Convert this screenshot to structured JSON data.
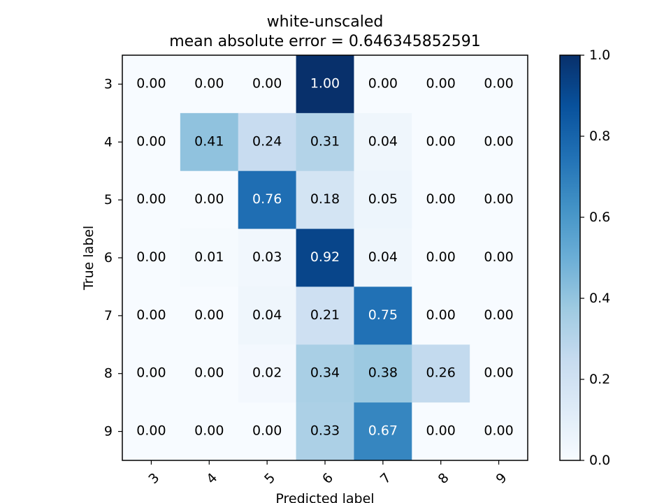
{
  "chart_data": {
    "type": "heatmap",
    "title": "white-unscaled",
    "subtitle": "mean absolute error = 0.646345852591",
    "xlabel": "Predicted label",
    "ylabel": "True label",
    "x_categories": [
      "3",
      "4",
      "5",
      "6",
      "7",
      "8",
      "9"
    ],
    "y_categories": [
      "3",
      "4",
      "5",
      "6",
      "7",
      "8",
      "9"
    ],
    "values": [
      [
        0.0,
        0.0,
        0.0,
        1.0,
        0.0,
        0.0,
        0.0
      ],
      [
        0.0,
        0.41,
        0.24,
        0.31,
        0.04,
        0.0,
        0.0
      ],
      [
        0.0,
        0.0,
        0.76,
        0.18,
        0.05,
        0.0,
        0.0
      ],
      [
        0.0,
        0.01,
        0.03,
        0.92,
        0.04,
        0.0,
        0.0
      ],
      [
        0.0,
        0.0,
        0.04,
        0.21,
        0.75,
        0.0,
        0.0
      ],
      [
        0.0,
        0.0,
        0.02,
        0.34,
        0.38,
        0.26,
        0.0
      ],
      [
        0.0,
        0.0,
        0.0,
        0.33,
        0.67,
        0.0,
        0.0
      ]
    ],
    "colormap": "Blues",
    "color_range": [
      0.0,
      1.0
    ],
    "colorbar_ticks": [
      "0.0",
      "0.2",
      "0.4",
      "0.6",
      "0.8",
      "1.0"
    ],
    "x_tick_rotation": 45,
    "text_threshold": 0.5,
    "text_colors": {
      "dark": "#000000",
      "light": "#ffffff"
    }
  }
}
